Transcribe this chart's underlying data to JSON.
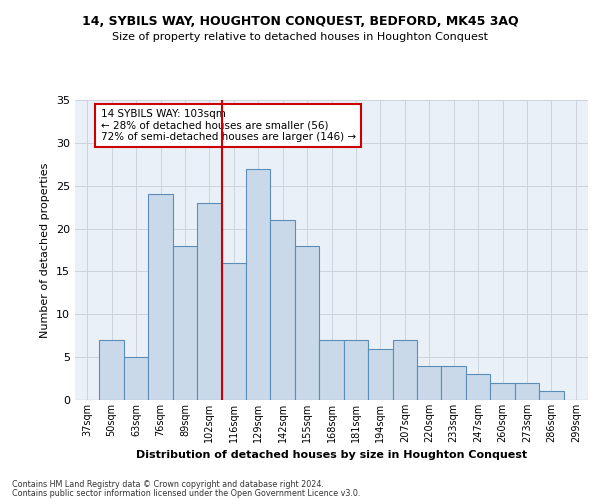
{
  "title1": "14, SYBILS WAY, HOUGHTON CONQUEST, BEDFORD, MK45 3AQ",
  "title2": "Size of property relative to detached houses in Houghton Conquest",
  "xlabel": "Distribution of detached houses by size in Houghton Conquest",
  "ylabel": "Number of detached properties",
  "bin_labels": [
    "37sqm",
    "50sqm",
    "63sqm",
    "76sqm",
    "89sqm",
    "102sqm",
    "116sqm",
    "129sqm",
    "142sqm",
    "155sqm",
    "168sqm",
    "181sqm",
    "194sqm",
    "207sqm",
    "220sqm",
    "233sqm",
    "247sqm",
    "260sqm",
    "273sqm",
    "286sqm",
    "299sqm"
  ],
  "bar_values": [
    0,
    7,
    5,
    24,
    18,
    23,
    16,
    27,
    21,
    18,
    7,
    7,
    6,
    7,
    4,
    4,
    3,
    2,
    2,
    1,
    0
  ],
  "bar_color": "#c9d9ea",
  "bar_edgecolor": "#5b8db8",
  "bar_linewidth": 0.8,
  "grid_color": "#c8cfd8",
  "bg_color": "#eaf0f7",
  "vline_x": 5.5,
  "vline_color": "#cc0000",
  "annotation_line1": "14 SYBILS WAY: 103sqm",
  "annotation_line2": "← 28% of detached houses are smaller (56)",
  "annotation_line3": "72% of semi-detached houses are larger (146) →",
  "annotation_box_color": "#ffffff",
  "annotation_box_edgecolor": "#cc0000",
  "ylim": [
    0,
    35
  ],
  "yticks": [
    0,
    5,
    10,
    15,
    20,
    25,
    30,
    35
  ],
  "footnote1": "Contains HM Land Registry data © Crown copyright and database right 2024.",
  "footnote2": "Contains public sector information licensed under the Open Government Licence v3.0."
}
